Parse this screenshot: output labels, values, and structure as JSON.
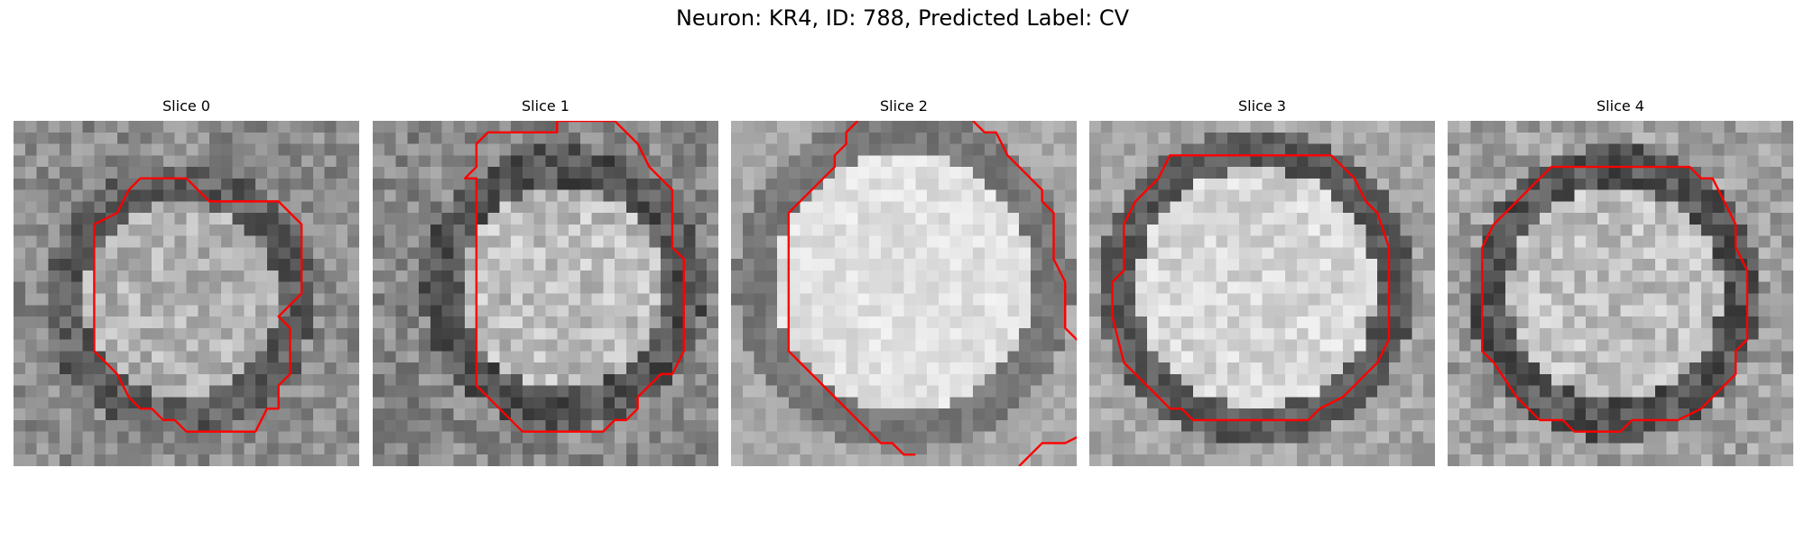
{
  "figure": {
    "title": "Neuron: KR4, ID: 788, Predicted Label: CV"
  },
  "panels": [
    {
      "title": "Slice 0",
      "contour": [
        [
          11,
          5
        ],
        [
          15,
          5
        ],
        [
          17,
          7
        ],
        [
          23,
          7
        ],
        [
          25,
          9
        ],
        [
          25,
          15
        ],
        [
          23,
          17
        ],
        [
          24,
          18
        ],
        [
          24,
          22
        ],
        [
          23,
          23
        ],
        [
          23,
          25
        ],
        [
          22,
          25
        ],
        [
          21,
          27
        ],
        [
          15,
          27
        ],
        [
          14,
          26
        ],
        [
          13,
          26
        ],
        [
          12,
          25
        ],
        [
          11,
          25
        ],
        [
          10,
          24
        ],
        [
          9,
          22
        ],
        [
          7,
          20
        ],
        [
          7,
          9
        ],
        [
          9,
          8
        ],
        [
          10,
          6
        ]
      ]
    },
    {
      "title": "Slice 1",
      "contour": [
        [
          16,
          0
        ],
        [
          16,
          1
        ],
        [
          10,
          1
        ],
        [
          9,
          2
        ],
        [
          9,
          4
        ],
        [
          8,
          5
        ],
        [
          9,
          5
        ],
        [
          9,
          23
        ],
        [
          11,
          25
        ],
        [
          13,
          27
        ],
        [
          20,
          27
        ],
        [
          21,
          26
        ],
        [
          22,
          26
        ],
        [
          23,
          25
        ],
        [
          23,
          24
        ],
        [
          24,
          23
        ],
        [
          25,
          22
        ],
        [
          26,
          22
        ],
        [
          27,
          20
        ],
        [
          27,
          12
        ],
        [
          26,
          11
        ],
        [
          26,
          6
        ],
        [
          24,
          4
        ],
        [
          23,
          2
        ],
        [
          21,
          0
        ]
      ]
    },
    {
      "title": "Slice 2",
      "contour": [
        [
          11,
          0
        ],
        [
          10,
          1
        ],
        [
          10,
          2
        ],
        [
          9,
          3
        ],
        [
          9,
          4
        ],
        [
          8,
          5
        ],
        [
          7,
          6
        ],
        [
          5,
          8
        ],
        [
          5,
          20
        ],
        [
          7,
          22
        ],
        [
          8,
          23
        ],
        [
          9,
          24
        ],
        [
          10,
          25
        ],
        [
          11,
          26
        ],
        [
          12,
          27
        ],
        [
          13,
          28
        ],
        [
          14,
          28
        ],
        [
          15,
          29
        ],
        [
          16,
          29
        ]
      ]
    },
    {
      "title": "Slice 3",
      "contour": [
        [
          7,
          3
        ],
        [
          21,
          3
        ],
        [
          22,
          4
        ],
        [
          23,
          5
        ],
        [
          24,
          7
        ],
        [
          25,
          8
        ],
        [
          26,
          11
        ],
        [
          26,
          19
        ],
        [
          25,
          21
        ],
        [
          24,
          22
        ],
        [
          23,
          23
        ],
        [
          22,
          24
        ],
        [
          20,
          25
        ],
        [
          19,
          26
        ],
        [
          9,
          26
        ],
        [
          8,
          25
        ],
        [
          7,
          25
        ],
        [
          6,
          24
        ],
        [
          5,
          23
        ],
        [
          4,
          22
        ],
        [
          3,
          21
        ],
        [
          2,
          17
        ],
        [
          2,
          14
        ],
        [
          3,
          13
        ],
        [
          3,
          9
        ],
        [
          4,
          7
        ],
        [
          5,
          6
        ],
        [
          6,
          5
        ]
      ]
    },
    {
      "title": "Slice 4",
      "contour": [
        [
          10,
          4
        ],
        [
          21,
          4
        ],
        [
          22,
          5
        ],
        [
          23,
          5
        ],
        [
          24,
          7
        ],
        [
          25,
          9
        ],
        [
          25,
          10
        ],
        [
          25,
          11
        ],
        [
          26,
          13
        ],
        [
          26,
          19
        ],
        [
          25,
          20
        ],
        [
          25,
          22
        ],
        [
          24,
          23
        ],
        [
          23,
          24
        ],
        [
          22,
          25
        ],
        [
          20,
          26
        ],
        [
          16,
          26
        ],
        [
          15,
          27
        ],
        [
          11,
          27
        ],
        [
          10,
          26
        ],
        [
          8,
          26
        ],
        [
          7,
          25
        ],
        [
          6,
          24
        ],
        [
          4,
          21
        ],
        [
          3,
          20
        ],
        [
          3,
          11
        ],
        [
          4,
          9
        ],
        [
          5,
          8
        ],
        [
          6,
          7
        ],
        [
          8,
          5
        ],
        [
          9,
          4
        ]
      ]
    }
  ],
  "extra_contours": {
    "2": [
      [
        21,
        0
      ],
      [
        22,
        1
      ],
      [
        23,
        1
      ],
      [
        24,
        3
      ],
      [
        25,
        4
      ],
      [
        26,
        5
      ],
      [
        27,
        6
      ],
      [
        27,
        7
      ],
      [
        28,
        8
      ],
      [
        28,
        10
      ],
      [
        28,
        12
      ],
      [
        29,
        14
      ],
      [
        29,
        16
      ],
      [
        29,
        18
      ],
      [
        30,
        19
      ],
      [
        31,
        20
      ],
      [
        32,
        21
      ],
      [
        32,
        24
      ],
      [
        31,
        27
      ],
      [
        29,
        28
      ],
      [
        27,
        28
      ],
      [
        25,
        30
      ]
    ]
  },
  "colors": {
    "contour": "#ff0000"
  }
}
